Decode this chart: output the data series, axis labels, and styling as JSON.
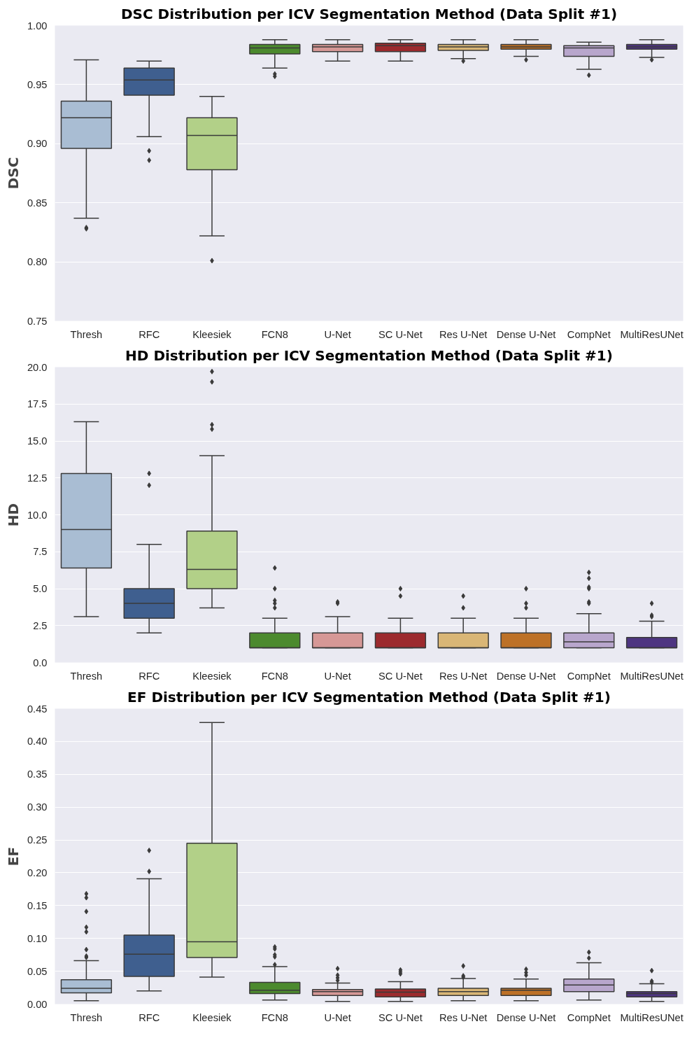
{
  "chart_data": [
    {
      "type": "box",
      "title": "DSC Distribution per ICV Segmentation Method (Data Split #1)",
      "ylabel": "DSC",
      "categories": [
        "Thresh",
        "RFC",
        "Kleesiek",
        "FCN8",
        "U-Net",
        "SC U-Net",
        "Res U-Net",
        "Dense U-Net",
        "CompNet",
        "MultiResUNet"
      ],
      "colors": [
        "#a9bdd3",
        "#3f5f8f",
        "#b2d088",
        "#4c8a2e",
        "#d69896",
        "#9c2a2e",
        "#d9b676",
        "#bd7127",
        "#b8a6cc",
        "#4e3581"
      ],
      "ylim": [
        0.75,
        1.0
      ],
      "yticks": [
        {
          "value": 0.75,
          "label": "0.75"
        },
        {
          "value": 0.8,
          "label": "0.80"
        },
        {
          "value": 0.85,
          "label": "0.85"
        },
        {
          "value": 0.9,
          "label": "0.90"
        },
        {
          "value": 0.95,
          "label": "0.95"
        },
        {
          "value": 1.0,
          "label": "1.00"
        }
      ],
      "grid": "y",
      "boxes": [
        {
          "low": 0.837,
          "q1": 0.896,
          "median": 0.922,
          "q3": 0.936,
          "high": 0.971,
          "outliers": [
            0.829,
            0.828
          ]
        },
        {
          "low": 0.906,
          "q1": 0.941,
          "median": 0.954,
          "q3": 0.964,
          "high": 0.97,
          "outliers": [
            0.894,
            0.886
          ]
        },
        {
          "low": 0.822,
          "q1": 0.878,
          "median": 0.907,
          "q3": 0.922,
          "high": 0.94,
          "outliers": [
            0.801
          ]
        },
        {
          "low": 0.964,
          "q1": 0.976,
          "median": 0.981,
          "q3": 0.984,
          "high": 0.988,
          "outliers": [
            0.959,
            0.957
          ]
        },
        {
          "low": 0.97,
          "q1": 0.978,
          "median": 0.982,
          "q3": 0.984,
          "high": 0.988
        },
        {
          "low": 0.97,
          "q1": 0.978,
          "median": 0.983,
          "q3": 0.985,
          "high": 0.988
        },
        {
          "low": 0.972,
          "q1": 0.979,
          "median": 0.982,
          "q3": 0.984,
          "high": 0.988,
          "outliers": [
            0.97
          ]
        },
        {
          "low": 0.974,
          "q1": 0.98,
          "median": 0.982,
          "q3": 0.984,
          "high": 0.988,
          "outliers": [
            0.971
          ]
        },
        {
          "low": 0.963,
          "q1": 0.974,
          "median": 0.981,
          "q3": 0.983,
          "high": 0.986,
          "outliers": [
            0.958
          ]
        },
        {
          "low": 0.973,
          "q1": 0.98,
          "median": 0.982,
          "q3": 0.984,
          "high": 0.988,
          "outliers": [
            0.971
          ]
        }
      ]
    },
    {
      "type": "box",
      "title": "HD Distribution per ICV Segmentation Method (Data Split #1)",
      "ylabel": "HD",
      "categories": [
        "Thresh",
        "RFC",
        "Kleesiek",
        "FCN8",
        "U-Net",
        "SC U-Net",
        "Res U-Net",
        "Dense U-Net",
        "CompNet",
        "MultiResUNet"
      ],
      "colors": [
        "#a9bdd3",
        "#3f5f8f",
        "#b2d088",
        "#4c8a2e",
        "#d69896",
        "#9c2a2e",
        "#d9b676",
        "#bd7127",
        "#b8a6cc",
        "#4e3581"
      ],
      "ylim": [
        0,
        20
      ],
      "yticks": [
        {
          "value": 0,
          "label": "0.0"
        },
        {
          "value": 2.5,
          "label": "2.5"
        },
        {
          "value": 5,
          "label": "5.0"
        },
        {
          "value": 7.5,
          "label": "7.5"
        },
        {
          "value": 10,
          "label": "10.0"
        },
        {
          "value": 12.5,
          "label": "12.5"
        },
        {
          "value": 15,
          "label": "15.0"
        },
        {
          "value": 17.5,
          "label": "17.5"
        },
        {
          "value": 20,
          "label": "20.0"
        }
      ],
      "grid": "y",
      "boxes": [
        {
          "low": 3.1,
          "q1": 6.4,
          "median": 9.0,
          "q3": 12.8,
          "high": 16.3
        },
        {
          "low": 2.0,
          "q1": 3.0,
          "median": 4.0,
          "q3": 5.0,
          "high": 8.0,
          "outliers": [
            12.0,
            12.8
          ]
        },
        {
          "low": 3.7,
          "q1": 5.0,
          "median": 6.3,
          "q3": 8.9,
          "high": 14.0,
          "outliers": [
            15.8,
            16.1,
            19.0,
            19.7
          ]
        },
        {
          "low": 1.0,
          "q1": 1.0,
          "median": 1.0,
          "q3": 2.0,
          "high": 3.0,
          "outliers": [
            6.4,
            5.0,
            4.2,
            4.0,
            3.7
          ]
        },
        {
          "low": 1.0,
          "q1": 1.0,
          "median": 1.0,
          "q3": 2.0,
          "high": 3.1,
          "outliers": [
            4.1,
            4.0
          ]
        },
        {
          "low": 1.0,
          "q1": 1.0,
          "median": 1.0,
          "q3": 2.0,
          "high": 3.0,
          "outliers": [
            5.0,
            4.5
          ]
        },
        {
          "low": 1.0,
          "q1": 1.0,
          "median": 1.0,
          "q3": 2.0,
          "high": 3.0,
          "outliers": [
            4.5,
            3.7
          ]
        },
        {
          "low": 1.0,
          "q1": 1.0,
          "median": 1.0,
          "q3": 2.0,
          "high": 3.0,
          "outliers": [
            5.0,
            4.0,
            3.7
          ]
        },
        {
          "low": 1.0,
          "q1": 1.0,
          "median": 1.4,
          "q3": 2.0,
          "high": 3.3,
          "outliers": [
            6.1,
            5.7,
            5.1,
            5.0,
            4.1,
            4.0
          ]
        },
        {
          "low": 1.0,
          "q1": 1.0,
          "median": 1.0,
          "q3": 1.7,
          "high": 2.8,
          "outliers": [
            4.0,
            3.2,
            3.1
          ]
        }
      ]
    },
    {
      "type": "box",
      "title": "EF Distribution per ICV Segmentation Method (Data Split #1)",
      "ylabel": "EF",
      "categories": [
        "Thresh",
        "RFC",
        "Kleesiek",
        "FCN8",
        "U-Net",
        "SC U-Net",
        "Res U-Net",
        "Dense U-Net",
        "CompNet",
        "MultiResUNet"
      ],
      "colors": [
        "#a9bdd3",
        "#3f5f8f",
        "#b2d088",
        "#4c8a2e",
        "#d69896",
        "#9c2a2e",
        "#d9b676",
        "#bd7127",
        "#b8a6cc",
        "#4e3581"
      ],
      "ylim": [
        0,
        0.45
      ],
      "yticks": [
        {
          "value": 0,
          "label": "0.00"
        },
        {
          "value": 0.05,
          "label": "0.05"
        },
        {
          "value": 0.1,
          "label": "0.10"
        },
        {
          "value": 0.15,
          "label": "0.15"
        },
        {
          "value": 0.2,
          "label": "0.20"
        },
        {
          "value": 0.25,
          "label": "0.25"
        },
        {
          "value": 0.3,
          "label": "0.30"
        },
        {
          "value": 0.35,
          "label": "0.35"
        },
        {
          "value": 0.4,
          "label": "0.40"
        },
        {
          "value": 0.45,
          "label": "0.45"
        }
      ],
      "grid": "y",
      "boxes": [
        {
          "low": 0.005,
          "q1": 0.017,
          "median": 0.024,
          "q3": 0.037,
          "high": 0.066,
          "outliers": [
            0.071,
            0.073,
            0.083,
            0.11,
            0.117,
            0.141,
            0.162,
            0.168
          ]
        },
        {
          "low": 0.02,
          "q1": 0.042,
          "median": 0.076,
          "q3": 0.105,
          "high": 0.191,
          "outliers": [
            0.202,
            0.234
          ]
        },
        {
          "low": 0.041,
          "q1": 0.071,
          "median": 0.095,
          "q3": 0.245,
          "high": 0.429
        },
        {
          "low": 0.006,
          "q1": 0.016,
          "median": 0.021,
          "q3": 0.033,
          "high": 0.057,
          "outliers": [
            0.087,
            0.084,
            0.075,
            0.072,
            0.06
          ]
        },
        {
          "low": 0.004,
          "q1": 0.013,
          "median": 0.019,
          "q3": 0.022,
          "high": 0.032,
          "outliers": [
            0.054,
            0.044,
            0.04,
            0.036
          ]
        },
        {
          "low": 0.004,
          "q1": 0.011,
          "median": 0.018,
          "q3": 0.023,
          "high": 0.034,
          "outliers": [
            0.052,
            0.049,
            0.046
          ]
        },
        {
          "low": 0.005,
          "q1": 0.013,
          "median": 0.019,
          "q3": 0.024,
          "high": 0.039,
          "outliers": [
            0.058,
            0.043,
            0.041
          ]
        },
        {
          "low": 0.005,
          "q1": 0.013,
          "median": 0.021,
          "q3": 0.024,
          "high": 0.038,
          "outliers": [
            0.053,
            0.048,
            0.044
          ]
        },
        {
          "low": 0.006,
          "q1": 0.019,
          "median": 0.029,
          "q3": 0.038,
          "high": 0.063,
          "outliers": [
            0.079,
            0.07
          ]
        },
        {
          "low": 0.004,
          "q1": 0.011,
          "median": 0.016,
          "q3": 0.019,
          "high": 0.031,
          "outliers": [
            0.051,
            0.035,
            0.033
          ]
        }
      ]
    }
  ]
}
